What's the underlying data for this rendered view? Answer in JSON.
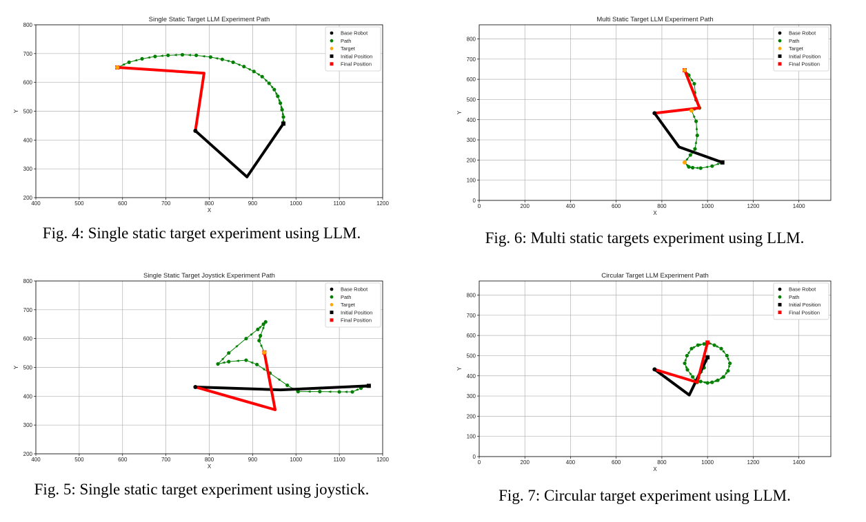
{
  "charts": [
    {
      "title": "Single Static Target LLM Experiment Path",
      "caption": "Fig. 4: Single static target experiment using LLM.",
      "xlabel": "X",
      "ylabel": "Y"
    },
    {
      "title": "Multi Static Target LLM Experiment Path",
      "caption": "Fig. 6: Multi static targets experiment using LLM.",
      "xlabel": "X",
      "ylabel": "Y"
    },
    {
      "title": "Single Static Target Joystick Experiment Path",
      "caption": "Fig. 5: Single static target experiment using joystick.",
      "xlabel": "X",
      "ylabel": "Y"
    },
    {
      "title": "Circular Target LLM Experiment Path",
      "caption": "Fig. 7: Circular target experiment using LLM.",
      "xlabel": "X",
      "ylabel": "Y"
    }
  ],
  "colors": {
    "base": "#000000",
    "path": "#007f00",
    "target": "#ffa500",
    "initial": "#000000",
    "final": "#ff0000",
    "grid": "#b0b0b0"
  },
  "chart_data": [
    {
      "type": "line",
      "title": "Single Static Target LLM Experiment Path",
      "xlabel": "X",
      "ylabel": "Y",
      "xlim": [
        400,
        1200
      ],
      "ylim": [
        200,
        800
      ],
      "xticks": [
        400,
        500,
        600,
        700,
        800,
        900,
        1000,
        1100,
        1200
      ],
      "yticks": [
        200,
        300,
        400,
        500,
        600,
        700,
        800
      ],
      "legend": [
        "Base Robot",
        "Path",
        "Target",
        "Initial Position",
        "Final Position"
      ],
      "legend_location": "top-right",
      "grid": true,
      "base": [
        768,
        432
      ],
      "initial_arm": [
        [
          768,
          432
        ],
        [
          887,
          272
        ],
        [
          971,
          457
        ]
      ],
      "final_arm": [
        [
          768,
          432
        ],
        [
          788,
          632
        ],
        [
          588,
          652
        ]
      ],
      "path": [
        [
          971,
          457
        ],
        [
          971,
          480
        ],
        [
          968,
          505
        ],
        [
          964,
          528
        ],
        [
          958,
          552
        ],
        [
          950,
          575
        ],
        [
          938,
          597
        ],
        [
          922,
          620
        ],
        [
          903,
          638
        ],
        [
          880,
          655
        ],
        [
          855,
          670
        ],
        [
          830,
          680
        ],
        [
          803,
          688
        ],
        [
          770,
          694
        ],
        [
          738,
          696
        ],
        [
          705,
          694
        ],
        [
          675,
          690
        ],
        [
          645,
          682
        ],
        [
          615,
          670
        ],
        [
          588,
          652
        ]
      ],
      "targets": [
        [
          588,
          652
        ]
      ]
    },
    {
      "type": "line",
      "title": "Multi Static Target LLM Experiment Path",
      "xlabel": "X",
      "ylabel": "Y",
      "xlim": [
        0,
        1540
      ],
      "ylim": [
        0,
        870
      ],
      "xticks": [
        0,
        200,
        400,
        600,
        800,
        1000,
        1200,
        1400
      ],
      "yticks": [
        0,
        100,
        200,
        300,
        400,
        500,
        600,
        700,
        800
      ],
      "legend": [
        "Base Robot",
        "Path",
        "Target",
        "Initial Position",
        "Final Position"
      ],
      "legend_location": "top-right",
      "grid": true,
      "base": [
        768,
        432
      ],
      "initial_arm": [
        [
          768,
          432
        ],
        [
          875,
          265
        ],
        [
          1065,
          188
        ]
      ],
      "final_arm": [
        [
          768,
          432
        ],
        [
          965,
          458
        ],
        [
          900,
          645
        ]
      ],
      "path": [
        [
          1065,
          188
        ],
        [
          1020,
          170
        ],
        [
          970,
          160
        ],
        [
          935,
          162
        ],
        [
          918,
          166
        ],
        [
          900,
          188
        ],
        [
          925,
          225
        ],
        [
          945,
          255
        ],
        [
          955,
          322
        ],
        [
          950,
          392
        ],
        [
          930,
          445
        ],
        [
          965,
          458
        ],
        [
          950,
          498
        ],
        [
          942,
          578
        ],
        [
          918,
          620
        ],
        [
          900,
          645
        ]
      ],
      "targets": [
        [
          900,
          188
        ],
        [
          930,
          445
        ],
        [
          900,
          645
        ]
      ]
    },
    {
      "type": "line",
      "title": "Single Static Target Joystick Experiment Path",
      "xlabel": "X",
      "ylabel": "Y",
      "xlim": [
        400,
        1200
      ],
      "ylim": [
        200,
        800
      ],
      "xticks": [
        400,
        500,
        600,
        700,
        800,
        900,
        1000,
        1100,
        1200
      ],
      "yticks": [
        200,
        300,
        400,
        500,
        600,
        700,
        800
      ],
      "legend": [
        "Base Robot",
        "Path",
        "Target",
        "Initial Position",
        "Final Position"
      ],
      "legend_location": "top-right",
      "grid": true,
      "base": [
        768,
        432
      ],
      "initial_arm": [
        [
          768,
          432
        ],
        [
          965,
          422
        ],
        [
          1168,
          436
        ]
      ],
      "final_arm": [
        [
          768,
          432
        ],
        [
          952,
          353
        ],
        [
          927,
          552
        ]
      ],
      "path": [
        [
          1168,
          436
        ],
        [
          1150,
          428
        ],
        [
          1130,
          415
        ],
        [
          1100,
          415
        ],
        [
          1055,
          416
        ],
        [
          1005,
          416
        ],
        [
          980,
          438
        ],
        [
          940,
          480
        ],
        [
          910,
          510
        ],
        [
          885,
          525
        ],
        [
          845,
          520
        ],
        [
          820,
          512
        ],
        [
          845,
          550
        ],
        [
          885,
          600
        ],
        [
          912,
          632
        ],
        [
          925,
          650
        ],
        [
          930,
          658
        ],
        [
          918,
          610
        ],
        [
          915,
          593
        ],
        [
          927,
          552
        ]
      ],
      "targets": [
        [
          927,
          552
        ]
      ]
    },
    {
      "type": "line",
      "title": "Circular Target LLM Experiment Path",
      "xlabel": "X",
      "ylabel": "Y",
      "xlim": [
        0,
        1540
      ],
      "ylim": [
        0,
        870
      ],
      "xticks": [
        0,
        200,
        400,
        600,
        800,
        1000,
        1200,
        1400
      ],
      "yticks": [
        0,
        100,
        200,
        300,
        400,
        500,
        600,
        700,
        800
      ],
      "legend": [
        "Base Robot",
        "Path",
        "Initial Position",
        "Final Position"
      ],
      "legend_location": "top-right",
      "grid": true,
      "base": [
        768,
        432
      ],
      "initial_arm": [
        [
          768,
          432
        ],
        [
          920,
          305
        ],
        [
          1000,
          492
        ]
      ],
      "final_arm": [
        [
          768,
          432
        ],
        [
          955,
          368
        ],
        [
          1000,
          565
        ]
      ],
      "path": [
        [
          1000,
          492
        ],
        [
          985,
          440
        ],
        [
          960,
          390
        ],
        [
          950,
          370
        ],
        [
          935,
          395
        ],
        [
          912,
          430
        ],
        [
          900,
          462
        ],
        [
          910,
          500
        ],
        [
          930,
          535
        ],
        [
          958,
          552
        ],
        [
          985,
          558
        ],
        [
          1000,
          565
        ],
        [
          1030,
          552
        ],
        [
          1060,
          535
        ],
        [
          1085,
          500
        ],
        [
          1098,
          462
        ],
        [
          1090,
          425
        ],
        [
          1070,
          395
        ],
        [
          1045,
          378
        ],
        [
          1020,
          368
        ],
        [
          1000,
          365
        ],
        [
          970,
          372
        ],
        [
          955,
          368
        ]
      ],
      "targets": []
    }
  ]
}
